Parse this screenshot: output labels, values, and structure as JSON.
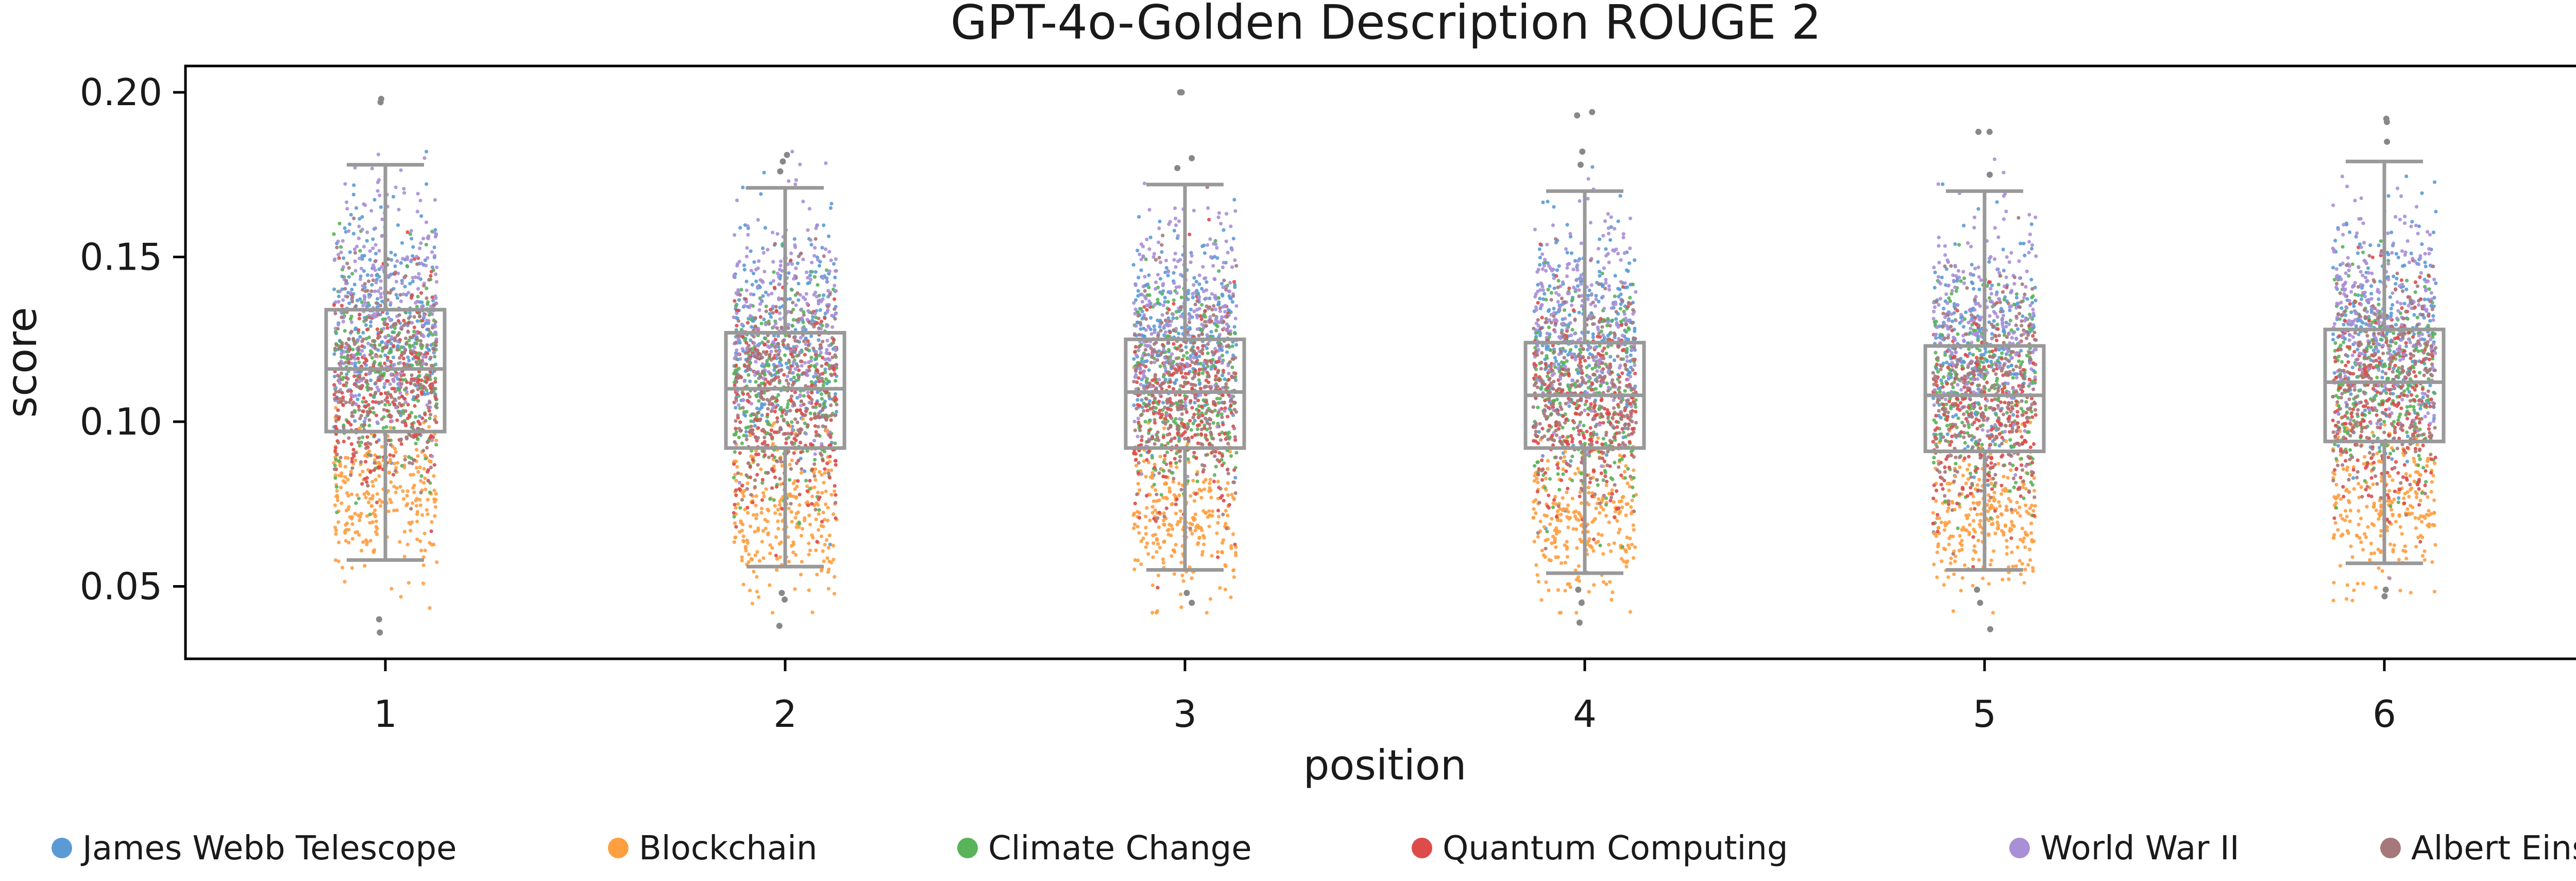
{
  "chart_data": {
    "type": "box-strip",
    "title": "GPT-4o-Golden Description ROUGE 2",
    "xlabel": "position",
    "ylabel": "score",
    "categories": [
      "1",
      "2",
      "3",
      "4",
      "5",
      "6"
    ],
    "ylim": [
      0.028,
      0.208
    ],
    "yticks": [
      0.05,
      0.1,
      0.15,
      0.2
    ],
    "ytick_labels": [
      "0.05",
      "0.10",
      "0.15",
      "0.20"
    ],
    "box_color": "#999999",
    "grid": false,
    "legend_position": "bottom",
    "boxes": [
      {
        "position": "1",
        "whislo": 0.058,
        "q1": 0.097,
        "median": 0.116,
        "q3": 0.134,
        "whishi": 0.178,
        "outliers": [
          0.198,
          0.197,
          0.04,
          0.036
        ]
      },
      {
        "position": "2",
        "whislo": 0.056,
        "q1": 0.092,
        "median": 0.11,
        "q3": 0.127,
        "whishi": 0.171,
        "outliers": [
          0.181,
          0.179,
          0.176,
          0.048,
          0.046,
          0.038
        ]
      },
      {
        "position": "3",
        "whislo": 0.055,
        "q1": 0.092,
        "median": 0.109,
        "q3": 0.125,
        "whishi": 0.172,
        "outliers": [
          0.2,
          0.2,
          0.18,
          0.177,
          0.048,
          0.045
        ]
      },
      {
        "position": "4",
        "whislo": 0.054,
        "q1": 0.092,
        "median": 0.108,
        "q3": 0.124,
        "whishi": 0.17,
        "outliers": [
          0.194,
          0.193,
          0.182,
          0.178,
          0.049,
          0.045,
          0.039
        ]
      },
      {
        "position": "5",
        "whislo": 0.055,
        "q1": 0.091,
        "median": 0.108,
        "q3": 0.123,
        "whishi": 0.17,
        "outliers": [
          0.188,
          0.188,
          0.175,
          0.049,
          0.045,
          0.037
        ]
      },
      {
        "position": "6",
        "whislo": 0.057,
        "q1": 0.094,
        "median": 0.112,
        "q3": 0.128,
        "whishi": 0.179,
        "outliers": [
          0.192,
          0.191,
          0.185,
          0.049,
          0.047
        ]
      }
    ],
    "series": [
      {
        "name": "James Webb Telescope",
        "color": "#5b9bd5",
        "center": 0.127,
        "spread": 0.017,
        "points_per_position": 260
      },
      {
        "name": "Blockchain",
        "color": "#ff9f40",
        "center": 0.073,
        "spread": 0.012,
        "points_per_position": 260
      },
      {
        "name": "Climate Change",
        "color": "#59b359",
        "center": 0.112,
        "spread": 0.016,
        "points_per_position": 260
      },
      {
        "name": "Quantum Computing",
        "color": "#dd4b4b",
        "center": 0.106,
        "spread": 0.016,
        "points_per_position": 260
      },
      {
        "name": "World War II",
        "color": "#a98fd6",
        "center": 0.133,
        "spread": 0.017,
        "points_per_position": 260
      },
      {
        "name": "Albert Einstein",
        "color": "#a6787a",
        "center": 0.112,
        "spread": 0.016,
        "points_per_position": 260
      }
    ]
  }
}
